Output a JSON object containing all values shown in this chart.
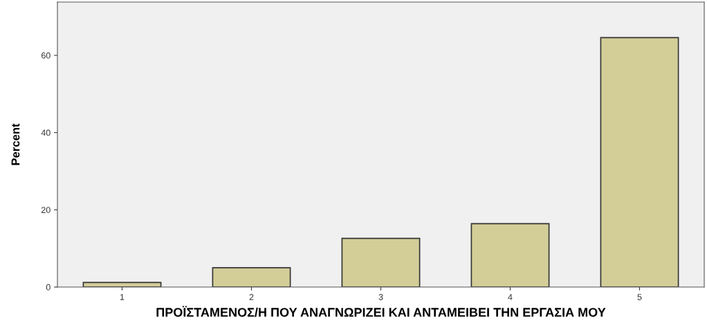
{
  "chart_data": {
    "type": "bar",
    "xlabel": "ΠΡΟΪΣΤΑΜΕΝΟΣ/Η ΠΟΥ ΑΝΑΓΝΩΡΙΖΕΙ ΚΑΙ ΑΝΤΑΜΕΙΒΕΙ ΤΗΝ ΕΡΓΑΣΙΑ ΜΟΥ",
    "ylabel": "Percent",
    "categories": [
      "1",
      "2",
      "3",
      "4",
      "5"
    ],
    "values": [
      1.2,
      5.0,
      12.6,
      16.4,
      64.6
    ],
    "color": "#d3cd98",
    "ylim": [
      0,
      73.8
    ],
    "yticks": [
      0,
      20,
      40,
      60
    ],
    "grid": false,
    "legend": false
  }
}
